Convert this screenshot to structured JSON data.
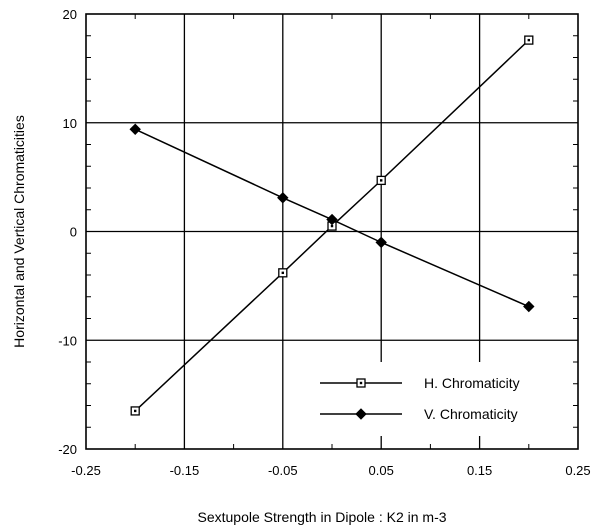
{
  "chart_data": {
    "type": "line",
    "title": "",
    "xlabel": "Sextupole Strength in Dipole : K2 in m-3",
    "ylabel": "Horizontal and Vertical Chromaticities",
    "xlim": [
      -0.25,
      0.25
    ],
    "ylim": [
      -20,
      20
    ],
    "xticks": [
      -0.25,
      -0.15,
      -0.05,
      0.05,
      0.15,
      0.25
    ],
    "xtick_labels": [
      "-0.25",
      "-0.15",
      "-0.05",
      "0.05",
      "0.15",
      "0.25"
    ],
    "yticks": [
      -20,
      -10,
      0,
      10,
      20
    ],
    "ytick_labels": [
      "-20",
      "-10",
      "0",
      "10",
      "20"
    ],
    "grid": true,
    "legend_position": "bottom-right",
    "series": [
      {
        "name": "H. Chromaticity",
        "marker": "open-square",
        "color": "#000000",
        "x": [
          -0.2,
          -0.05,
          0.0,
          0.05,
          0.2
        ],
        "y": [
          -16.5,
          -3.8,
          0.5,
          4.7,
          17.6
        ]
      },
      {
        "name": "V. Chromaticity",
        "marker": "filled-diamond",
        "color": "#000000",
        "x": [
          -0.2,
          -0.05,
          0.0,
          0.05,
          0.2
        ],
        "y": [
          9.4,
          3.1,
          1.1,
          -1.0,
          -6.9
        ]
      }
    ]
  }
}
